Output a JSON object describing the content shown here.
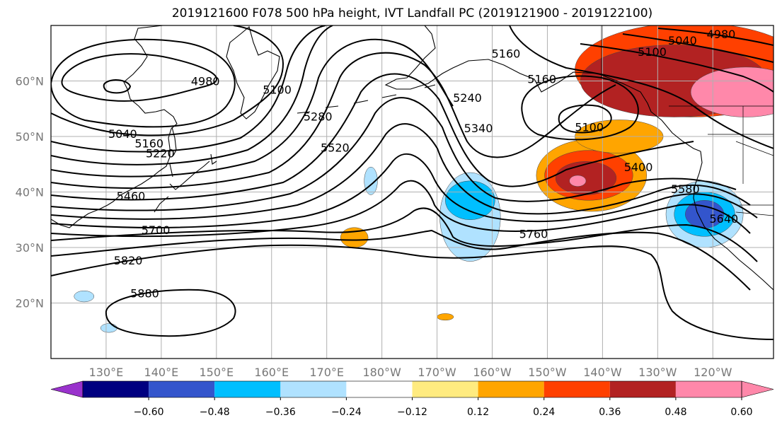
{
  "title": "2019121600 F078 500 hPa height, IVT Landfall PC (2019121900 - 2019122100)",
  "map": {
    "projection": "equirectangular",
    "lon_range": [
      120,
      251
    ],
    "lat_range": [
      10,
      70
    ],
    "lon_ticks": [
      {
        "lon": 130,
        "label": "130°E"
      },
      {
        "lon": 140,
        "label": "140°E"
      },
      {
        "lon": 150,
        "label": "150°E"
      },
      {
        "lon": 160,
        "label": "160°E"
      },
      {
        "lon": 170,
        "label": "170°E"
      },
      {
        "lon": 180,
        "label": "180°W"
      },
      {
        "lon": 190,
        "label": "170°W"
      },
      {
        "lon": 200,
        "label": "160°W"
      },
      {
        "lon": 210,
        "label": "150°W"
      },
      {
        "lon": 220,
        "label": "140°W"
      },
      {
        "lon": 230,
        "label": "130°W"
      },
      {
        "lon": 240,
        "label": "120°W"
      }
    ],
    "lat_ticks": [
      {
        "lat": 20,
        "label": "20°N"
      },
      {
        "lat": 30,
        "label": "30°N"
      },
      {
        "lat": 40,
        "label": "40°N"
      },
      {
        "lat": 50,
        "label": "50°N"
      },
      {
        "lat": 60,
        "label": "60°N"
      }
    ],
    "grid": true,
    "contour_labels": [
      {
        "text": "4980",
        "lon": 148,
        "lat": 60
      },
      {
        "text": "5100",
        "lon": 161,
        "lat": 58.5
      },
      {
        "text": "5040",
        "lon": 133,
        "lat": 50.5
      },
      {
        "text": "5160",
        "lon": 137.8,
        "lat": 48.8
      },
      {
        "text": "5220",
        "lon": 139.8,
        "lat": 47
      },
      {
        "text": "5280",
        "lon": 168.4,
        "lat": 53.6
      },
      {
        "text": "5520",
        "lon": 171.5,
        "lat": 48
      },
      {
        "text": "5460",
        "lon": 134.5,
        "lat": 39.3
      },
      {
        "text": "5700",
        "lon": 139,
        "lat": 33.2
      },
      {
        "text": "5820",
        "lon": 134,
        "lat": 27.7
      },
      {
        "text": "5880",
        "lon": 137,
        "lat": 21.8
      },
      {
        "text": "5160",
        "lon": 202.5,
        "lat": 65
      },
      {
        "text": "5240",
        "lon": 195.5,
        "lat": 57
      },
      {
        "text": "5340",
        "lon": 197.5,
        "lat": 51.5
      },
      {
        "text": "5160",
        "lon": 209,
        "lat": 60.4
      },
      {
        "text": "5100",
        "lon": 217.6,
        "lat": 51.7
      },
      {
        "text": "5100",
        "lon": 229,
        "lat": 65.3
      },
      {
        "text": "5040",
        "lon": 234.5,
        "lat": 67.3
      },
      {
        "text": "4980",
        "lon": 241.5,
        "lat": 68.5
      },
      {
        "text": "5400",
        "lon": 226.5,
        "lat": 44.5
      },
      {
        "text": "5580",
        "lon": 235,
        "lat": 40.6
      },
      {
        "text": "5640",
        "lon": 242,
        "lat": 35.2
      },
      {
        "text": "5760",
        "lon": 207.5,
        "lat": 32.5
      }
    ],
    "ivt_regions": [
      {
        "lon": 236,
        "lat": 62,
        "rx": 21,
        "ry": 8.5,
        "value": 0.36
      },
      {
        "lon": 233,
        "lat": 60,
        "rx": 17,
        "ry": 6.5,
        "value": 0.48
      },
      {
        "lon": 246,
        "lat": 58,
        "rx": 10,
        "ry": 4.5,
        "value": 0.6
      },
      {
        "lon": 218,
        "lat": 43,
        "rx": 10,
        "ry": 6.5,
        "value": 0.24
      },
      {
        "lon": 217.5,
        "lat": 43,
        "rx": 8,
        "ry": 4.5,
        "value": 0.36
      },
      {
        "lon": 217,
        "lat": 42.5,
        "rx": 5.5,
        "ry": 3,
        "value": 0.48
      },
      {
        "lon": 215.5,
        "lat": 42,
        "rx": 1.5,
        "ry": 1,
        "value": 0.6
      },
      {
        "lon": 223,
        "lat": 50,
        "rx": 8,
        "ry": 3,
        "value": 0.24
      },
      {
        "lon": 196,
        "lat": 35.5,
        "rx": 5.5,
        "ry": 8,
        "value": -0.24
      },
      {
        "lon": 196,
        "lat": 38.5,
        "rx": 4.5,
        "ry": 3.5,
        "value": -0.36
      },
      {
        "lon": 238.5,
        "lat": 36,
        "rx": 7,
        "ry": 6,
        "value": -0.24
      },
      {
        "lon": 238.5,
        "lat": 36,
        "rx": 5.5,
        "ry": 4,
        "value": -0.36
      },
      {
        "lon": 238.5,
        "lat": 36,
        "rx": 3.5,
        "ry": 2.5,
        "value": -0.48
      },
      {
        "lon": 178,
        "lat": 42,
        "rx": 1.2,
        "ry": 2.5,
        "value": -0.24
      },
      {
        "lon": 175,
        "lat": 31.8,
        "rx": 2.5,
        "ry": 1.8,
        "value": 0.24
      },
      {
        "lon": 191.5,
        "lat": 17.5,
        "rx": 1.5,
        "ry": 0.6,
        "value": 0.24
      },
      {
        "lon": 126,
        "lat": 21.2,
        "rx": 1.8,
        "ry": 1,
        "value": -0.24
      },
      {
        "lon": 130.5,
        "lat": 15.5,
        "rx": 1.5,
        "ry": 0.8,
        "value": -0.24
      }
    ]
  },
  "colorbar": {
    "ticks": [
      "−0.60",
      "−0.48",
      "−0.36",
      "−0.24",
      "−0.12",
      "0.12",
      "0.24",
      "0.36",
      "0.48",
      "0.60"
    ],
    "colors": [
      "#9932cc",
      "#000080",
      "#3355cc",
      "#00bfff",
      "#b0e2ff",
      "#ffffff",
      "#ffeb80",
      "#ffa500",
      "#ff4000",
      "#b22222",
      "#ff88aa"
    ],
    "extend": "both"
  }
}
